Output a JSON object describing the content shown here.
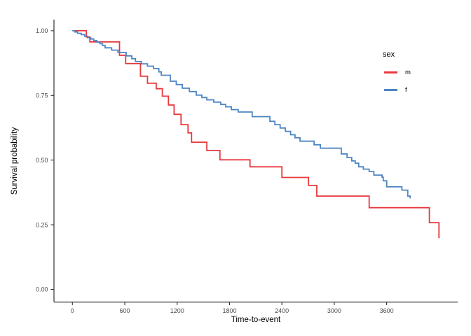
{
  "figure": {
    "background": "#ffffff"
  },
  "axis_titles": {
    "x": "Time-to-event",
    "y": "Survival probability"
  },
  "chart_data": {
    "type": "line",
    "variant": "kaplan-meier-step",
    "title": "",
    "xlabel": "Time-to-event",
    "ylabel": "Survival probability",
    "grid": false,
    "xlim": [
      -210,
      4415
    ],
    "ylim": [
      0,
      1.07
    ],
    "x_ticks": [
      0,
      600,
      1200,
      1800,
      2400,
      3000,
      3600
    ],
    "y_ticks": [
      {
        "value": 0.0,
        "label": "0.00"
      },
      {
        "value": 0.25,
        "label": "0.25"
      },
      {
        "value": 0.5,
        "label": "0.50"
      },
      {
        "value": 0.75,
        "label": "0.75"
      },
      {
        "value": 1.0,
        "label": "1.00"
      }
    ],
    "legend": {
      "title": "sex",
      "position": "right-top"
    },
    "series": [
      {
        "name": "m",
        "color": "#e8383d",
        "points": [
          [
            0,
            1.0
          ],
          [
            160,
            0.976
          ],
          [
            200,
            0.957
          ],
          [
            540,
            0.905
          ],
          [
            610,
            0.873
          ],
          [
            780,
            0.824
          ],
          [
            860,
            0.797
          ],
          [
            960,
            0.776
          ],
          [
            1030,
            0.747
          ],
          [
            1100,
            0.713
          ],
          [
            1165,
            0.677
          ],
          [
            1245,
            0.637
          ],
          [
            1325,
            0.605
          ],
          [
            1365,
            0.569
          ],
          [
            1540,
            0.537
          ],
          [
            1690,
            0.501
          ],
          [
            2035,
            0.474
          ],
          [
            2400,
            0.433
          ],
          [
            2705,
            0.402
          ],
          [
            2800,
            0.361
          ],
          [
            3400,
            0.316
          ],
          [
            4090,
            0.258
          ],
          [
            4200,
            0.198
          ]
        ]
      },
      {
        "name": "f",
        "color": "#4e86c3",
        "points": [
          [
            0,
            1.0
          ],
          [
            30,
            0.995
          ],
          [
            60,
            0.99
          ],
          [
            100,
            0.985
          ],
          [
            140,
            0.979
          ],
          [
            175,
            0.973
          ],
          [
            210,
            0.968
          ],
          [
            245,
            0.962
          ],
          [
            280,
            0.956
          ],
          [
            315,
            0.95
          ],
          [
            345,
            0.943
          ],
          [
            375,
            0.934
          ],
          [
            450,
            0.925
          ],
          [
            522,
            0.916
          ],
          [
            616,
            0.903
          ],
          [
            680,
            0.892
          ],
          [
            723,
            0.881
          ],
          [
            790,
            0.872
          ],
          [
            860,
            0.863
          ],
          [
            930,
            0.854
          ],
          [
            990,
            0.841
          ],
          [
            1018,
            0.828
          ],
          [
            1122,
            0.805
          ],
          [
            1190,
            0.792
          ],
          [
            1259,
            0.778
          ],
          [
            1340,
            0.765
          ],
          [
            1419,
            0.751
          ],
          [
            1483,
            0.742
          ],
          [
            1540,
            0.733
          ],
          [
            1620,
            0.724
          ],
          [
            1700,
            0.715
          ],
          [
            1756,
            0.706
          ],
          [
            1821,
            0.695
          ],
          [
            1900,
            0.686
          ],
          [
            2060,
            0.668
          ],
          [
            2263,
            0.65
          ],
          [
            2320,
            0.637
          ],
          [
            2380,
            0.624
          ],
          [
            2440,
            0.611
          ],
          [
            2500,
            0.598
          ],
          [
            2550,
            0.586
          ],
          [
            2608,
            0.573
          ],
          [
            2769,
            0.559
          ],
          [
            2841,
            0.546
          ],
          [
            3080,
            0.524
          ],
          [
            3146,
            0.51
          ],
          [
            3200,
            0.497
          ],
          [
            3240,
            0.488
          ],
          [
            3280,
            0.474
          ],
          [
            3333,
            0.465
          ],
          [
            3400,
            0.456
          ],
          [
            3454,
            0.442
          ],
          [
            3548,
            0.434
          ],
          [
            3561,
            0.42
          ],
          [
            3601,
            0.397
          ],
          [
            3775,
            0.384
          ],
          [
            3842,
            0.361
          ],
          [
            3870,
            0.352
          ]
        ]
      }
    ]
  }
}
